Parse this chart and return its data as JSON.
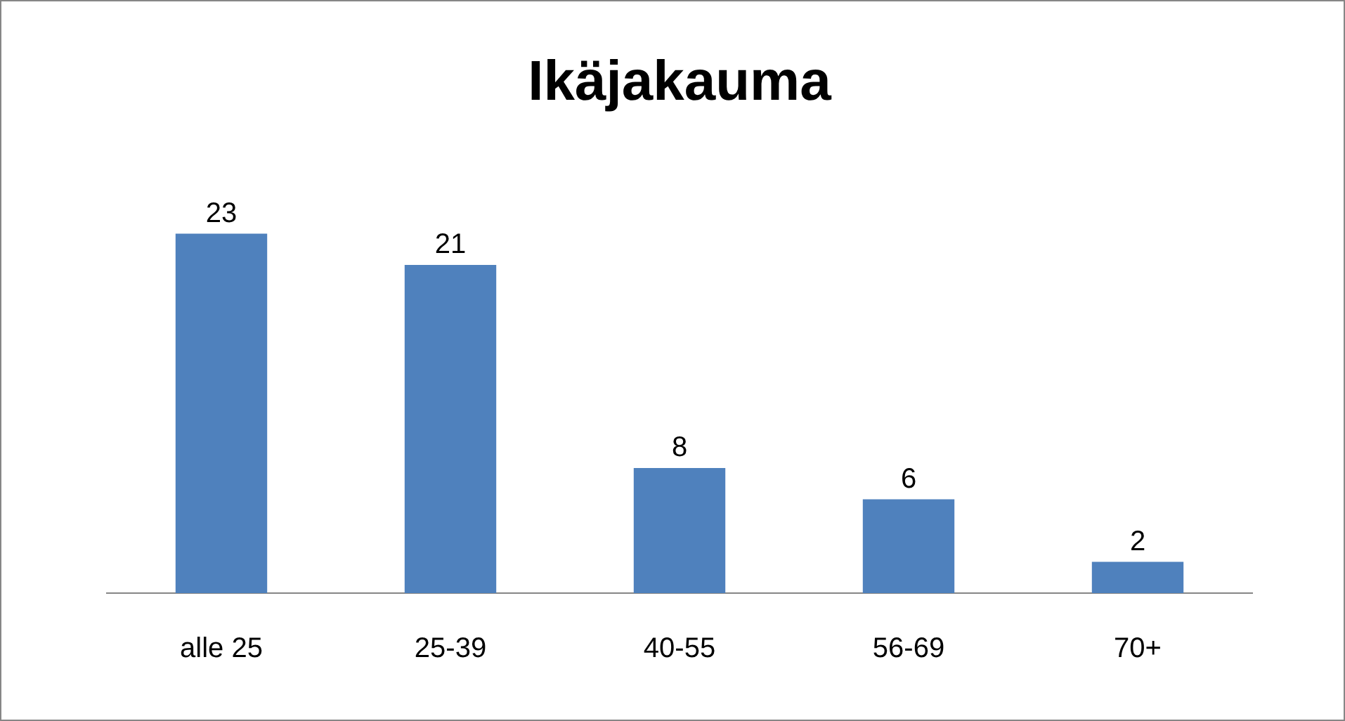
{
  "chart_data": {
    "type": "bar",
    "title": "Ikäjakauma",
    "categories": [
      "alle 25",
      "25-39",
      "40-55",
      "56-69",
      "70+"
    ],
    "values": [
      23,
      21,
      8,
      6,
      2
    ],
    "color": "#4f81bd",
    "data_labels": true,
    "legend": false,
    "grid": false
  }
}
